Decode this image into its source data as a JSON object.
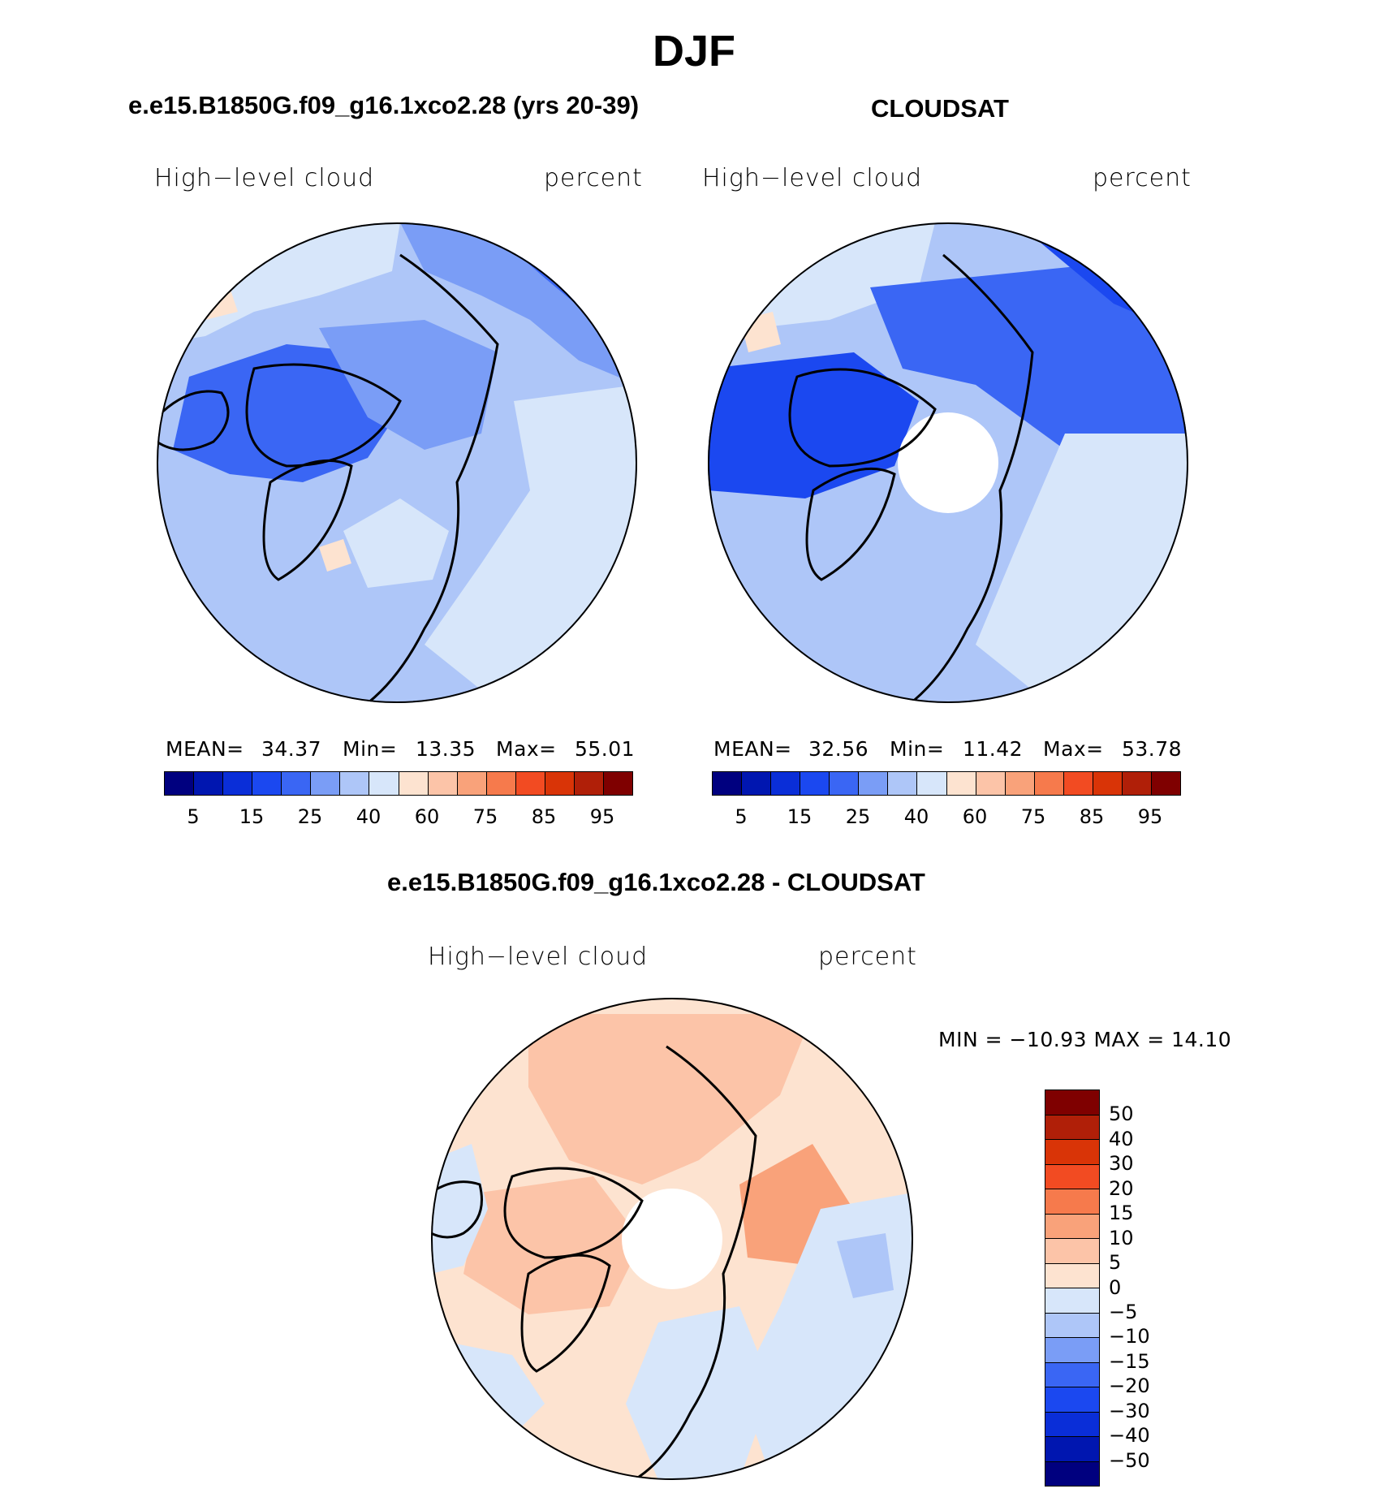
{
  "title": "DJF",
  "panels": {
    "model": {
      "title": "e.e15.B1850G.f09_g16.1xco2.28 (yrs 20-39)",
      "variable": "High−level cloud",
      "units": "percent",
      "stats": {
        "mean_label": "MEAN=",
        "mean": "34.37",
        "min_label": "Min=",
        "min": "13.35",
        "max_label": "Max=",
        "max": "55.01"
      }
    },
    "obs": {
      "title": "CLOUDSAT",
      "variable": "High−level cloud",
      "units": "percent",
      "stats": {
        "mean_label": "MEAN=",
        "mean": "32.56",
        "min_label": "Min=",
        "min": "11.42",
        "max_label": "Max=",
        "max": "53.78"
      }
    },
    "diff": {
      "title": "e.e15.B1850G.f09_g16.1xco2.28 - CLOUDSAT",
      "variable": "High−level cloud",
      "units": "percent",
      "minmax": "MIN = −10.93 MAX =   14.10"
    }
  },
  "colorbar_abs": {
    "colors": [
      "#00007f",
      "#0016b0",
      "#0a2ed8",
      "#1b48f0",
      "#3a66f4",
      "#7a9df6",
      "#aec6f8",
      "#d7e6fa",
      "#fde3d0",
      "#fcc4a8",
      "#f9a27a",
      "#f67a4c",
      "#f24b22",
      "#d93407",
      "#b01f08",
      "#7f0000"
    ],
    "labels": [
      "5",
      "15",
      "25",
      "40",
      "60",
      "75",
      "85",
      "95"
    ]
  },
  "colorbar_diff": {
    "colors": [
      "#7f0000",
      "#b01f08",
      "#d93407",
      "#f24b22",
      "#f67a4c",
      "#f9a27a",
      "#fcc4a8",
      "#fde3d0",
      "#d7e6fa",
      "#aec6f8",
      "#7a9df6",
      "#3a66f4",
      "#1b48f0",
      "#0a2ed8",
      "#0016b0",
      "#00007f"
    ],
    "labels": [
      "50",
      "40",
      "30",
      "20",
      "15",
      "10",
      "5",
      "0",
      "−5",
      "−10",
      "−15",
      "−20",
      "−30",
      "−40",
      "−50"
    ]
  },
  "map_palette": {
    "model": [
      "#d7e6fa",
      "#aec6f8",
      "#7a9df6",
      "#3a66f4",
      "#fde3d0"
    ],
    "obs": [
      "#d7e6fa",
      "#aec6f8",
      "#7a9df6",
      "#3a66f4",
      "#1b48f0",
      "#fde3d0"
    ],
    "diff": [
      "#fde3d0",
      "#fcc4a8",
      "#d7e6fa",
      "#aec6f8",
      "#f9a27a"
    ]
  }
}
